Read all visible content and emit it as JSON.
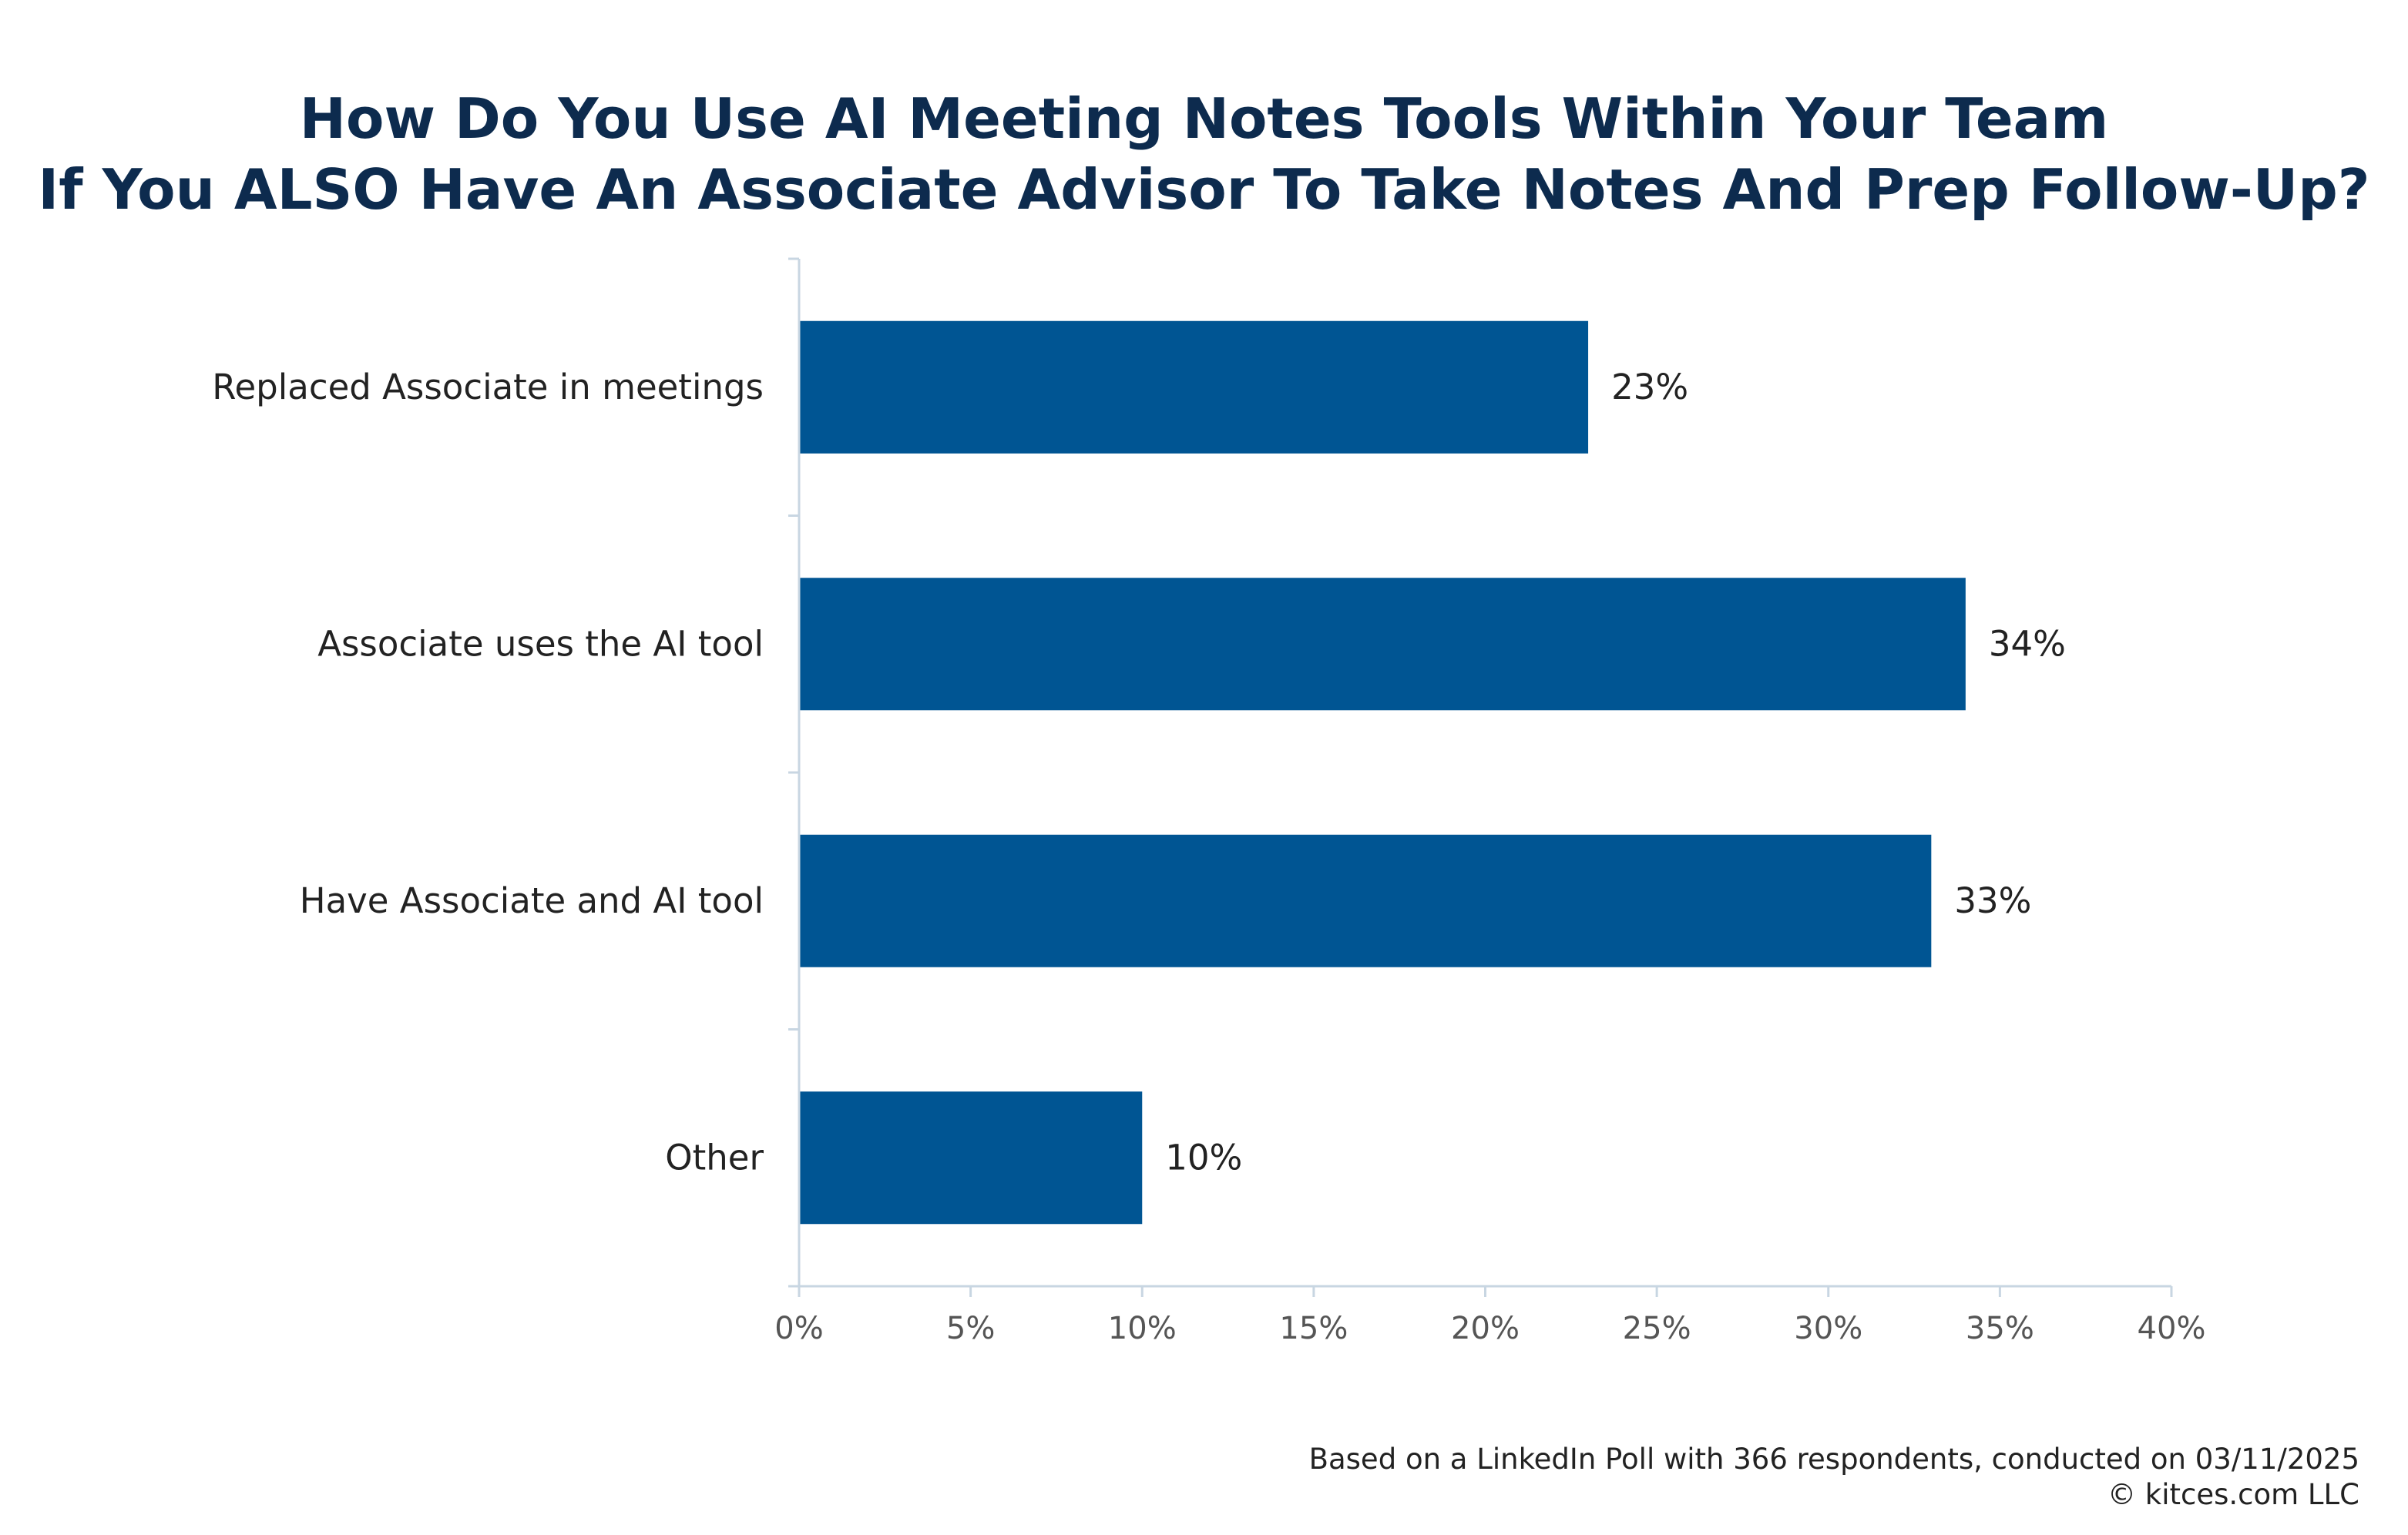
{
  "title_line1": "How Do You Use AI Meeting Notes Tools Within Your Team",
  "title_line2": "If You ALSO Have An Associate Advisor To Take Notes And Prep Follow-Up?",
  "footer": {
    "source": "Based on a LinkedIn Poll with 366 respondents, conducted on 03/11/2025",
    "copyright": "© kitces.com LLC"
  },
  "colors": {
    "bar": "#005593",
    "axis": "#c8d6e2",
    "title": "#0d2b4e",
    "tick_label": "#555555",
    "category_label": "#222222"
  },
  "chart_data": {
    "type": "bar",
    "orientation": "horizontal",
    "categories": [
      "Replaced Associate in meetings",
      "Associate uses the AI tool",
      "Have Associate and AI tool",
      "Other"
    ],
    "values": [
      23,
      34,
      33,
      10
    ],
    "data_labels": [
      "23%",
      "34%",
      "33%",
      "10%"
    ],
    "xlim": [
      0,
      40
    ],
    "xticks": [
      0,
      5,
      10,
      15,
      20,
      25,
      30,
      35,
      40
    ],
    "xtick_labels": [
      "0%",
      "5%",
      "10%",
      "15%",
      "20%",
      "25%",
      "30%",
      "35%",
      "40%"
    ],
    "grid": false,
    "legend": "none"
  }
}
